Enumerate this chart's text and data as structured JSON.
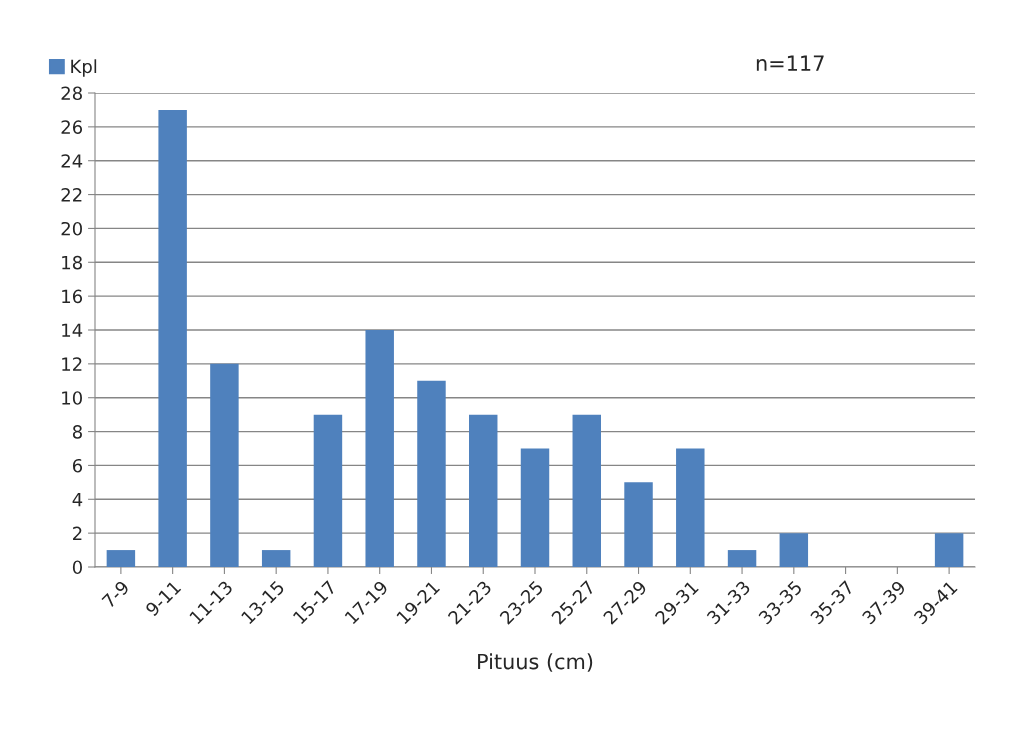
{
  "chart_data": {
    "type": "bar",
    "xlabel": "Pituus (cm)",
    "categories": [
      "7-9",
      "9-11",
      "11-13",
      "13-15",
      "15-17",
      "17-19",
      "19-21",
      "21-23",
      "23-25",
      "25-27",
      "27-29",
      "29-31",
      "31-33",
      "33-35",
      "35-37",
      "37-39",
      "39-41"
    ],
    "series": [
      {
        "name": "Kpl",
        "color": "#4f81bd",
        "values": [
          1,
          27,
          12,
          1,
          9,
          14,
          11,
          9,
          7,
          9,
          5,
          7,
          1,
          2,
          0,
          0,
          2
        ]
      }
    ],
    "ylim": [
      0,
      28
    ],
    "yticks": [
      0,
      2,
      4,
      6,
      8,
      10,
      12,
      14,
      16,
      18,
      20,
      22,
      24,
      26,
      28
    ],
    "grid": "y",
    "legend": "top left",
    "annotations": [
      "n=117"
    ]
  }
}
